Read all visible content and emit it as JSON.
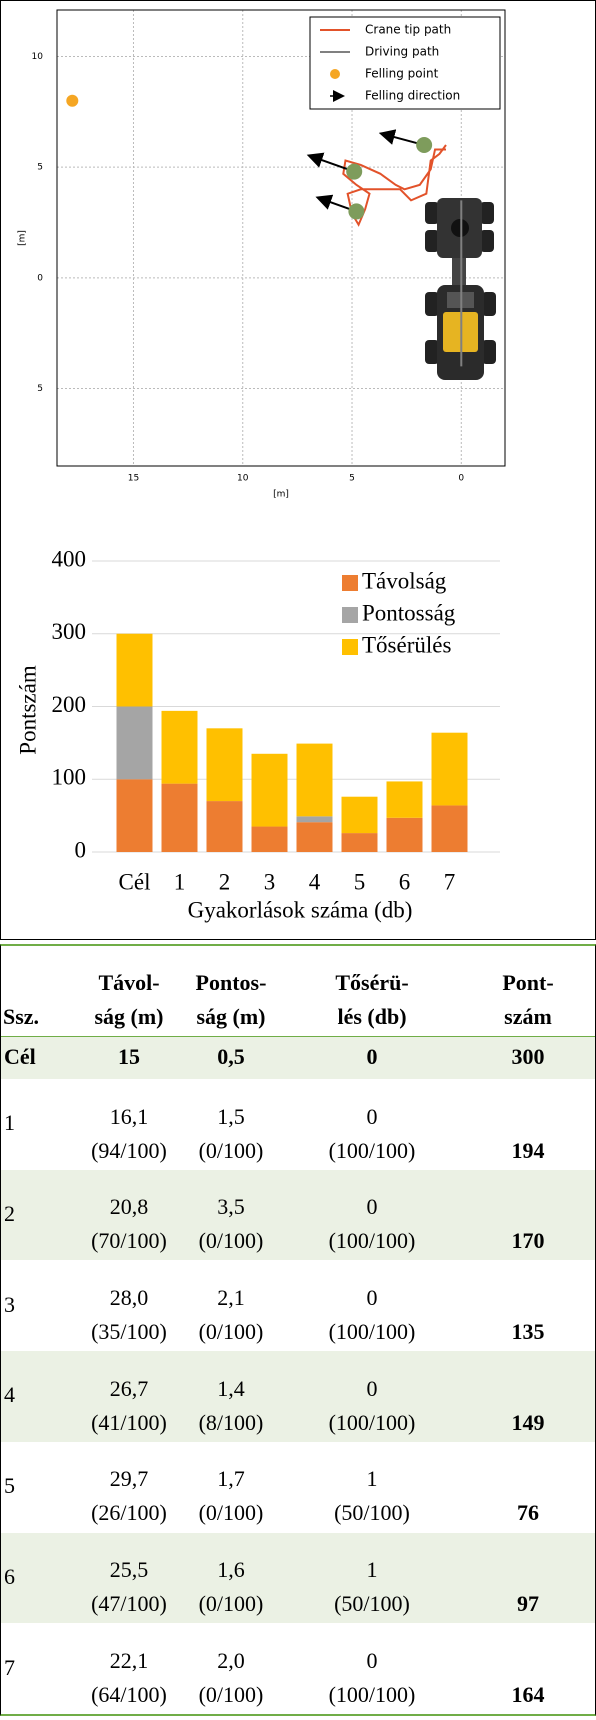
{
  "chart_data": [
    {
      "type": "line",
      "xlabel": "[m]",
      "ylabel": "[m]",
      "xlim": [
        18.5,
        -2
      ],
      "ylim": [
        -8.5,
        12.1
      ],
      "xticks": [
        15,
        10,
        5,
        0
      ],
      "yticks": [
        10,
        5,
        0,
        {
          "value": -5,
          "label": "5"
        }
      ],
      "grid": true,
      "legend": "upper right",
      "series": [
        {
          "name": "Crane tip path",
          "color": "#e2522a",
          "style": "line",
          "x": [
            0.7,
            1.2,
            1.4,
            1.9,
            2.6,
            3.0,
            3.7,
            4.6,
            5.3,
            5.4,
            4.8,
            4.2,
            4.4,
            4.7,
            5.0,
            5.2,
            4.6,
            3.7,
            2.8,
            2.3,
            1.6,
            1.4,
            1.0,
            0.7
          ],
          "y": [
            5.8,
            5.8,
            4.9,
            4.2,
            4.0,
            4.2,
            4.7,
            5.1,
            5.3,
            4.7,
            4.2,
            3.8,
            3.1,
            2.4,
            2.9,
            3.8,
            4.0,
            4.0,
            4.0,
            3.5,
            3.8,
            5.3,
            5.6,
            6.0
          ]
        },
        {
          "name": "Driving path",
          "color": "#808080",
          "style": "line",
          "x": [
            0,
            0
          ],
          "y": [
            3.5,
            -4
          ]
        },
        {
          "name": "Felling point",
          "color": "#f5a623",
          "style": "marker",
          "x": [
            17.8
          ],
          "y": [
            8.0
          ]
        },
        {
          "name": "Felling direction",
          "color": "#000000",
          "style": "arrow",
          "x": [
            4.9,
            4.8,
            1.7
          ],
          "y": [
            4.8,
            3.0,
            6.0
          ],
          "x_end": [
            6.9,
            6.5,
            3.6
          ],
          "y_end": [
            5.5,
            3.6,
            6.5
          ]
        },
        {
          "color": "#7e9c5c",
          "style": "marker",
          "x": [
            4.9,
            4.8,
            1.7
          ],
          "y": [
            4.8,
            3.0,
            6.0
          ]
        }
      ]
    },
    {
      "type": "bar",
      "stacked": true,
      "ylabel": "Pontszám",
      "xlabel": "Gyakorlások száma (db)",
      "categories": [
        "Cél",
        "1",
        "2",
        "3",
        "4",
        "5",
        "6",
        "7"
      ],
      "ylim": [
        0,
        400
      ],
      "yticks": [
        0,
        100,
        200,
        300,
        400
      ],
      "grid": true,
      "legend": "upper right",
      "series": [
        {
          "name": "Távolság",
          "color": "#ed7d31",
          "values": [
            100,
            94,
            70,
            35,
            41,
            26,
            47,
            64
          ]
        },
        {
          "name": "Pontosság",
          "color": "#a5a5a5",
          "values": [
            100,
            0,
            0,
            0,
            8,
            0,
            0,
            0
          ]
        },
        {
          "name": "Tősérülés",
          "color": "#ffc000",
          "values": [
            100,
            100,
            100,
            100,
            100,
            50,
            50,
            100
          ]
        }
      ]
    }
  ],
  "table": {
    "header": [
      [
        "Ssz."
      ],
      [
        "Távol-",
        "ság (m)"
      ],
      [
        "Pontos-",
        "ság (m)"
      ],
      [
        "Tősérü-",
        "lés (db)"
      ],
      [
        "Pont-",
        "szám"
      ]
    ],
    "rows": [
      {
        "id": "Cél",
        "cells": [
          [
            "15"
          ],
          [
            "0,5"
          ],
          [
            "0"
          ]
        ],
        "score": "300"
      },
      {
        "id": "1",
        "cells": [
          [
            "16,1",
            "(94/100)"
          ],
          [
            "1,5",
            "(0/100)"
          ],
          [
            "0",
            "(100/100)"
          ]
        ],
        "score": "194"
      },
      {
        "id": "2",
        "cells": [
          [
            "20,8",
            "(70/100)"
          ],
          [
            "3,5",
            "(0/100)"
          ],
          [
            "0",
            "(100/100)"
          ]
        ],
        "score": "170"
      },
      {
        "id": "3",
        "cells": [
          [
            "28,0",
            "(35/100)"
          ],
          [
            "2,1",
            "(0/100)"
          ],
          [
            "0",
            "(100/100)"
          ]
        ],
        "score": "135"
      },
      {
        "id": "4",
        "cells": [
          [
            "26,7",
            "(41/100)"
          ],
          [
            "1,4",
            "(8/100)"
          ],
          [
            "0",
            "(100/100)"
          ]
        ],
        "score": "149"
      },
      {
        "id": "5",
        "cells": [
          [
            "29,7",
            "(26/100)"
          ],
          [
            "1,7",
            "(0/100)"
          ],
          [
            "1",
            "(50/100)"
          ]
        ],
        "score": "76"
      },
      {
        "id": "6",
        "cells": [
          [
            "25,5",
            "(47/100)"
          ],
          [
            "1,6",
            "(0/100)"
          ],
          [
            "1",
            "(50/100)"
          ]
        ],
        "score": "97"
      },
      {
        "id": "7",
        "cells": [
          [
            "22,1",
            "(64/100)"
          ],
          [
            "2,0",
            "(0/100)"
          ],
          [
            "0",
            "(100/100)"
          ]
        ],
        "score": "164"
      }
    ]
  }
}
